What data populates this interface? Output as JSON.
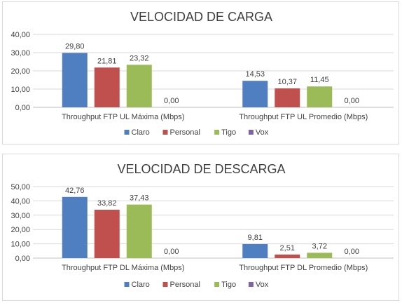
{
  "colors": {
    "Claro": "#4f7fc0",
    "Personal": "#c0504d",
    "Tigo": "#9bbb59",
    "Vox": "#8064a2"
  },
  "chart_data": [
    {
      "type": "bar",
      "title": "VELOCIDAD DE CARGA",
      "categories": [
        "Throughput FTP UL Máxima (Mbps)",
        "Throughput FTP UL Promedio (Mbps)"
      ],
      "series": [
        {
          "name": "Claro",
          "values": [
            29.8,
            14.53
          ],
          "labels": [
            "29,80",
            "14,53"
          ]
        },
        {
          "name": "Personal",
          "values": [
            21.81,
            10.37
          ],
          "labels": [
            "21,81",
            "10,37"
          ]
        },
        {
          "name": "Tigo",
          "values": [
            23.32,
            11.45
          ],
          "labels": [
            "23,32",
            "11,45"
          ]
        },
        {
          "name": "Vox",
          "values": [
            0.0,
            0.0
          ],
          "labels": [
            "0,00",
            "0,00"
          ]
        }
      ],
      "ylim": [
        0,
        40
      ],
      "yticks": [
        "0,00",
        "10,00",
        "20,00",
        "30,00",
        "40,00"
      ],
      "grid": true,
      "legend": "bottom"
    },
    {
      "type": "bar",
      "title": "VELOCIDAD DE DESCARGA",
      "categories": [
        "Throughput FTP DL Máxima (Mbps)",
        "Throughput FTP DL Promedio (Mbps)"
      ],
      "series": [
        {
          "name": "Claro",
          "values": [
            42.76,
            9.81
          ],
          "labels": [
            "42,76",
            "9,81"
          ]
        },
        {
          "name": "Personal",
          "values": [
            33.82,
            2.51
          ],
          "labels": [
            "33,82",
            "2,51"
          ]
        },
        {
          "name": "Tigo",
          "values": [
            37.43,
            3.72
          ],
          "labels": [
            "37,43",
            "3,72"
          ]
        },
        {
          "name": "Vox",
          "values": [
            0.0,
            0.0
          ],
          "labels": [
            "0,00",
            "0,00"
          ]
        }
      ],
      "ylim": [
        0,
        50
      ],
      "yticks": [
        "0,00",
        "10,00",
        "20,00",
        "30,00",
        "40,00",
        "50,00"
      ],
      "grid": true,
      "legend": "bottom"
    }
  ]
}
